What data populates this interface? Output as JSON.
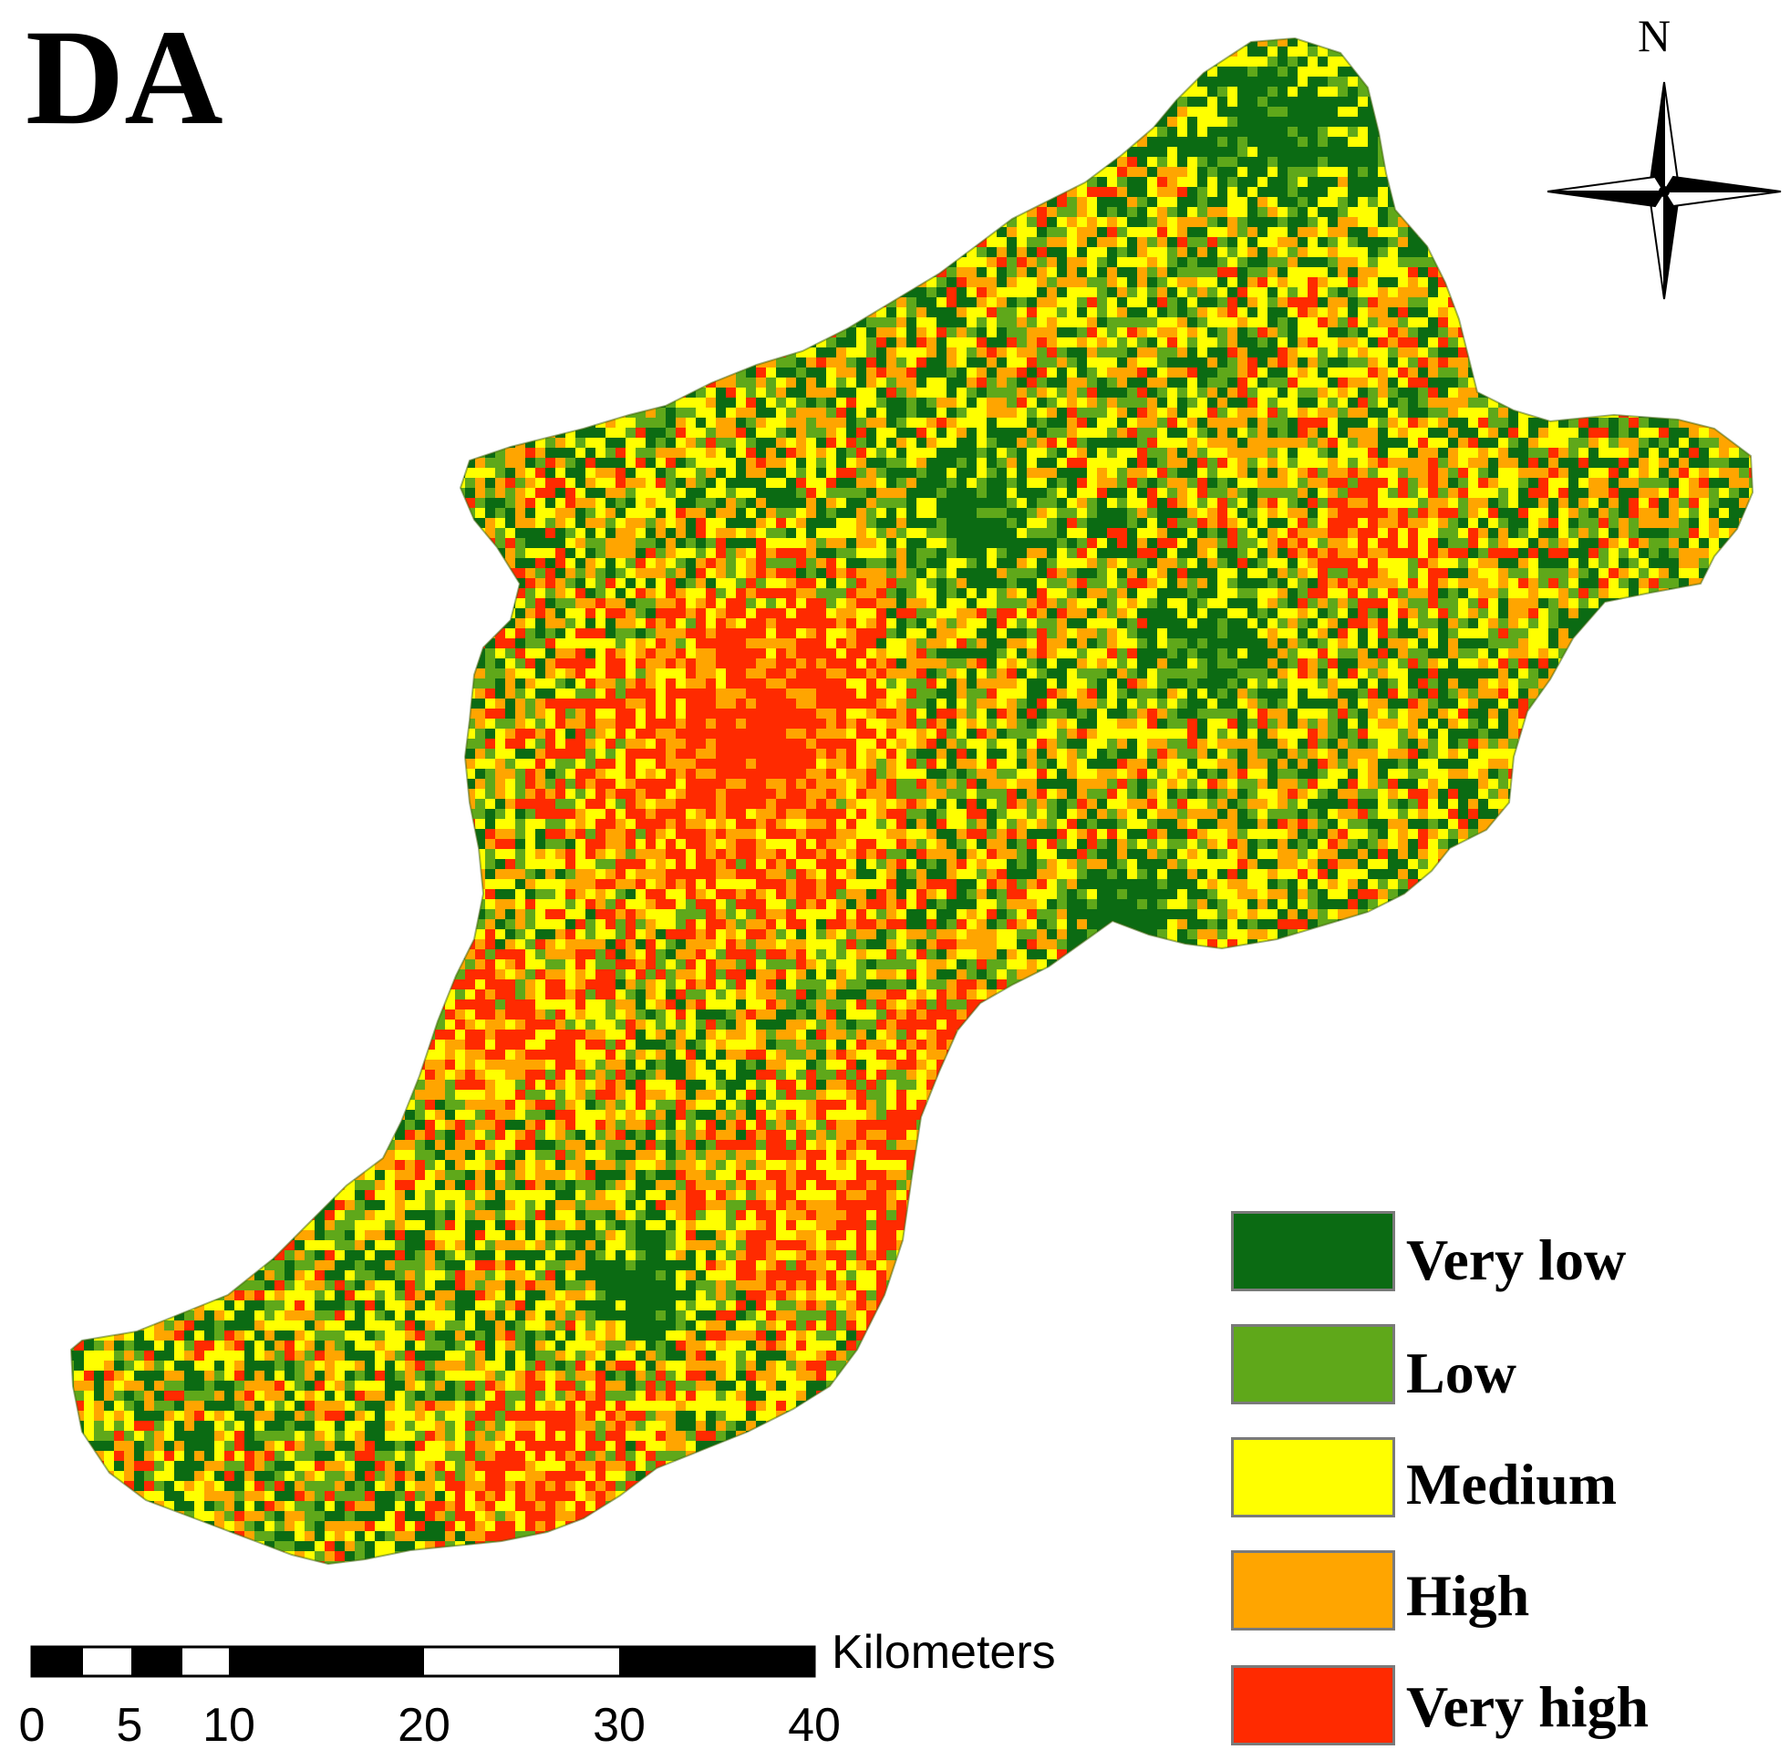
{
  "map": {
    "title": "DA",
    "north_label": "N",
    "legend": [
      {
        "label": "Very low",
        "color": "#0b6b13"
      },
      {
        "label": "Low",
        "color": "#5fa81a"
      },
      {
        "label": "Medium",
        "color": "#ffff00"
      },
      {
        "label": "High",
        "color": "#ffa500"
      },
      {
        "label": "Very high",
        "color": "#ff2a00"
      }
    ],
    "scale_bar": {
      "unit": "Kilometers",
      "ticks": [
        "0",
        "5",
        "10",
        "20",
        "30",
        "40"
      ]
    }
  }
}
